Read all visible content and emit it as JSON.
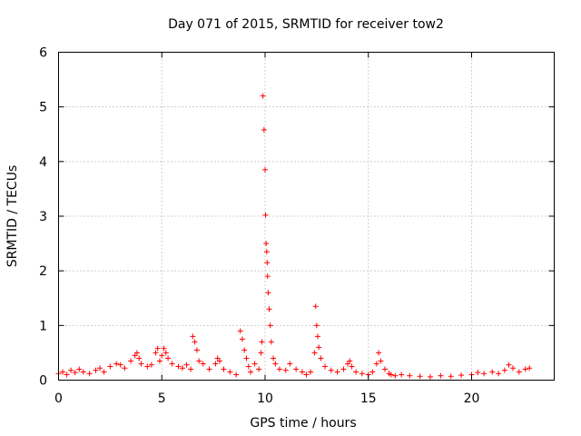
{
  "chart_data": {
    "type": "scatter",
    "title": "Day 071 of 2015, SRMTID for receiver tow2",
    "xlabel": "GPS time / hours",
    "ylabel": "SRMTID / TECUs",
    "xlim": [
      0,
      24
    ],
    "ylim": [
      0,
      6
    ],
    "xticks": [
      0,
      5,
      10,
      15,
      20
    ],
    "xtick_labels": [
      "0",
      "5",
      "10",
      "15",
      "20"
    ],
    "yticks": [
      0,
      1,
      2,
      3,
      4,
      5,
      6
    ],
    "ytick_labels": [
      "0",
      "1",
      "2",
      "3",
      "4",
      "5",
      "6"
    ],
    "grid": true,
    "marker": "+",
    "color": "#ff0000",
    "series": [
      {
        "name": "SRMTID",
        "x": [
          0.0,
          0.2,
          0.4,
          0.6,
          0.8,
          1.0,
          1.2,
          1.5,
          1.8,
          2.0,
          2.2,
          2.5,
          2.8,
          3.0,
          3.2,
          3.5,
          3.7,
          3.8,
          3.9,
          4.0,
          4.3,
          4.5,
          4.7,
          4.8,
          4.9,
          5.0,
          5.1,
          5.2,
          5.3,
          5.5,
          5.8,
          6.0,
          6.2,
          6.4,
          6.5,
          6.6,
          6.7,
          6.8,
          7.0,
          7.3,
          7.6,
          7.7,
          7.8,
          8.0,
          8.3,
          8.6,
          8.8,
          8.9,
          9.0,
          9.1,
          9.2,
          9.3,
          9.5,
          9.7,
          9.8,
          9.85,
          9.9,
          9.95,
          10.0,
          10.02,
          10.05,
          10.08,
          10.1,
          10.12,
          10.15,
          10.2,
          10.25,
          10.3,
          10.4,
          10.5,
          10.7,
          11.0,
          11.2,
          11.5,
          11.8,
          12.0,
          12.2,
          12.4,
          12.45,
          12.5,
          12.55,
          12.6,
          12.7,
          12.9,
          13.2,
          13.5,
          13.8,
          14.0,
          14.1,
          14.2,
          14.4,
          14.7,
          15.0,
          15.2,
          15.4,
          15.5,
          15.6,
          15.8,
          16.0,
          16.1,
          16.3,
          16.6,
          17.0,
          17.5,
          18.0,
          18.5,
          19.0,
          19.5,
          20.0,
          20.3,
          20.6,
          21.0,
          21.3,
          21.6,
          21.8,
          22.0,
          22.3,
          22.6,
          22.8
        ],
        "y": [
          0.12,
          0.15,
          0.1,
          0.18,
          0.14,
          0.2,
          0.15,
          0.12,
          0.18,
          0.22,
          0.15,
          0.25,
          0.3,
          0.28,
          0.22,
          0.35,
          0.45,
          0.5,
          0.4,
          0.3,
          0.25,
          0.28,
          0.5,
          0.58,
          0.35,
          0.45,
          0.58,
          0.5,
          0.4,
          0.3,
          0.25,
          0.22,
          0.28,
          0.2,
          0.8,
          0.7,
          0.55,
          0.35,
          0.3,
          0.2,
          0.3,
          0.4,
          0.35,
          0.2,
          0.15,
          0.1,
          0.9,
          0.75,
          0.55,
          0.4,
          0.25,
          0.15,
          0.3,
          0.2,
          0.5,
          0.7,
          5.2,
          4.58,
          3.85,
          3.02,
          2.5,
          2.35,
          2.15,
          1.9,
          1.6,
          1.3,
          1.0,
          0.7,
          0.4,
          0.3,
          0.2,
          0.18,
          0.3,
          0.2,
          0.15,
          0.1,
          0.15,
          0.5,
          1.35,
          1.0,
          0.8,
          0.6,
          0.4,
          0.25,
          0.18,
          0.15,
          0.2,
          0.3,
          0.35,
          0.25,
          0.15,
          0.12,
          0.1,
          0.15,
          0.3,
          0.5,
          0.35,
          0.2,
          0.12,
          0.1,
          0.08,
          0.1,
          0.08,
          0.07,
          0.06,
          0.08,
          0.07,
          0.09,
          0.1,
          0.14,
          0.12,
          0.15,
          0.12,
          0.18,
          0.28,
          0.22,
          0.15,
          0.2,
          0.22
        ]
      }
    ]
  }
}
